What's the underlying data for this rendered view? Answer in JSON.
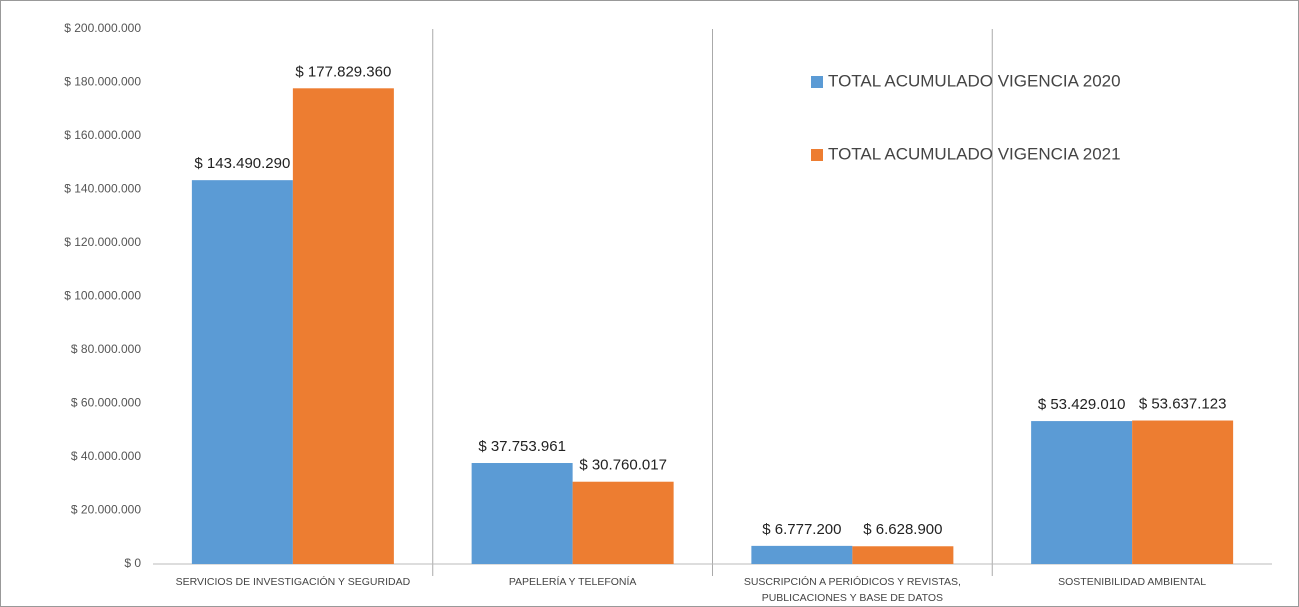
{
  "chart_data": {
    "type": "bar",
    "categories": [
      "SERVICIOS DE INVESTIGACIÓN Y SEGURIDAD",
      "PAPELERÍA Y TELEFONÍA",
      "SUSCRIPCIÓN A PERIÓDICOS Y REVISTAS,\nPUBLICACIONES Y BASE DE DATOS",
      "SOSTENIBILIDAD AMBIENTAL"
    ],
    "series": [
      {
        "name": "TOTAL ACUMULADO VIGENCIA 2020",
        "color": "#5b9bd5",
        "values": [
          143490290,
          37753961,
          6777200,
          53429010
        ],
        "value_labels": [
          "$ 143.490.290",
          "$ 37.753.961",
          "$ 6.777.200",
          "$ 53.429.010"
        ]
      },
      {
        "name": "TOTAL ACUMULADO VIGENCIA 2021",
        "color": "#ed7d31",
        "values": [
          177829360,
          30760017,
          6628900,
          53637123
        ],
        "value_labels": [
          "$ 177.829.360",
          "$ 30.760.017",
          "$ 6.628.900",
          "$ 53.637.123"
        ]
      }
    ],
    "ylim": [
      0,
      200000000
    ],
    "yticks": [
      {
        "value": 0,
        "label": "$ 0"
      },
      {
        "value": 20000000,
        "label": "$ 20.000.000"
      },
      {
        "value": 40000000,
        "label": "$ 40.000.000"
      },
      {
        "value": 60000000,
        "label": "$ 60.000.000"
      },
      {
        "value": 80000000,
        "label": "$ 80.000.000"
      },
      {
        "value": 100000000,
        "label": "$ 100.000.000"
      },
      {
        "value": 120000000,
        "label": "$ 120.000.000"
      },
      {
        "value": 140000000,
        "label": "$ 140.000.000"
      },
      {
        "value": 160000000,
        "label": "$ 160.000.000"
      },
      {
        "value": 180000000,
        "label": "$ 180.000.000"
      },
      {
        "value": 200000000,
        "label": "$ 200.000.000"
      }
    ],
    "grid": false,
    "category_separators": true,
    "legend": "upper right"
  }
}
